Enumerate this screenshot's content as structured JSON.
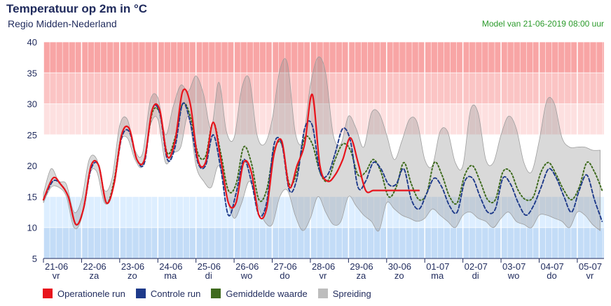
{
  "header": {
    "title": "Temperatuur op 2m in °C",
    "subtitle": "Regio Midden-Nederland",
    "model": "Model van 21-06-2019 08:00 uur"
  },
  "legend": [
    {
      "label": "Operationele run",
      "color": "#e8141c"
    },
    {
      "label": "Controle run",
      "color": "#1e3a8a"
    },
    {
      "label": "Gemiddelde waarde",
      "color": "#3f6b1e"
    },
    {
      "label": "Spreiding",
      "color": "#bdbdbd"
    }
  ],
  "chart_data": {
    "type": "line",
    "x_unit": "days since 21-06-2019 00:00",
    "ylim": [
      5,
      40
    ],
    "yticks": [
      5,
      10,
      15,
      20,
      25,
      30,
      35,
      40
    ],
    "bands": [
      {
        "from": 35,
        "to": 40,
        "color": "#f8a5a5"
      },
      {
        "from": 30,
        "to": 35,
        "color": "#fbc4c4"
      },
      {
        "from": 25,
        "to": 30,
        "color": "#fde0e0"
      },
      {
        "from": 15,
        "to": 25,
        "color": "#ffffff"
      },
      {
        "from": 10,
        "to": 15,
        "color": "#ddeeff"
      },
      {
        "from": 5,
        "to": 10,
        "color": "#c3dcf7"
      }
    ],
    "day_labels": [
      {
        "date": "21-06",
        "day": "vr"
      },
      {
        "date": "22-06",
        "day": "za"
      },
      {
        "date": "23-06",
        "day": "zo"
      },
      {
        "date": "24-06",
        "day": "ma"
      },
      {
        "date": "25-06",
        "day": "di"
      },
      {
        "date": "26-06",
        "day": "wo"
      },
      {
        "date": "27-06",
        "day": "do"
      },
      {
        "date": "28-06",
        "day": "vr"
      },
      {
        "date": "29-06",
        "day": "za"
      },
      {
        "date": "30-06",
        "day": "zo"
      },
      {
        "date": "01-07",
        "day": "ma"
      },
      {
        "date": "02-07",
        "day": "di"
      },
      {
        "date": "03-07",
        "day": "wo"
      },
      {
        "date": "04-07",
        "day": "do"
      },
      {
        "date": "05-07",
        "day": "vr"
      }
    ],
    "series": [
      {
        "name": "Spreiding",
        "kind": "range",
        "x": [
          0.0,
          0.2,
          0.4,
          0.6,
          0.8,
          1.0,
          1.2,
          1.4,
          1.6,
          1.8,
          2.0,
          2.2,
          2.4,
          2.6,
          2.8,
          3.0,
          3.2,
          3.4,
          3.6,
          3.8,
          4.0,
          4.2,
          4.4,
          4.6,
          4.8,
          5.0,
          5.2,
          5.4,
          5.6,
          5.8,
          6.0,
          6.2,
          6.4,
          6.6,
          6.8,
          7.0,
          7.2,
          7.4,
          7.6,
          7.8,
          8.0,
          8.2,
          8.4,
          8.6,
          8.8,
          9.0,
          9.2,
          9.4,
          9.6,
          9.8,
          10.0,
          10.2,
          10.4,
          10.6,
          10.8,
          11.0,
          11.2,
          11.4,
          11.6,
          11.8,
          12.0,
          12.2,
          12.4,
          12.6,
          12.8,
          13.0,
          13.2,
          13.4,
          13.6,
          13.8,
          14.0,
          14.2,
          14.4,
          14.6
        ],
        "low": [
          14.0,
          16.5,
          16.5,
          15.0,
          10.0,
          11.5,
          18.5,
          19.0,
          14.0,
          15.5,
          23.5,
          24.5,
          21.0,
          20.0,
          26.5,
          27.5,
          20.5,
          22.0,
          23.0,
          28.0,
          20.0,
          17.5,
          16.5,
          20.0,
          15.0,
          11.5,
          14.0,
          17.5,
          14.0,
          11.0,
          10.5,
          15.0,
          16.0,
          12.0,
          9.5,
          11.5,
          15.0,
          12.5,
          10.5,
          11.0,
          15.0,
          13.5,
          12.0,
          11.0,
          9.5,
          14.0,
          13.0,
          12.0,
          11.5,
          11.0,
          11.5,
          13.0,
          12.0,
          11.0,
          10.0,
          12.0,
          12.5,
          11.5,
          11.0,
          10.0,
          11.5,
          12.5,
          11.0,
          10.5,
          10.0,
          12.0,
          12.0,
          11.5,
          11.0,
          10.0,
          12.5,
          12.0,
          10.5,
          9.5
        ],
        "high": [
          15.5,
          19.5,
          17.5,
          17.0,
          12.5,
          14.5,
          21.0,
          21.0,
          16.0,
          18.0,
          26.5,
          27.5,
          22.5,
          22.0,
          30.5,
          31.0,
          25.0,
          29.5,
          33.0,
          32.0,
          34.5,
          31.5,
          26.0,
          33.5,
          25.5,
          24.5,
          32.5,
          34.0,
          25.0,
          23.5,
          27.5,
          35.5,
          36.5,
          25.5,
          24.0,
          33.0,
          37.5,
          35.0,
          25.0,
          23.5,
          28.0,
          26.0,
          23.0,
          28.5,
          28.5,
          25.0,
          21.0,
          24.0,
          27.5,
          27.0,
          21.0,
          20.0,
          25.5,
          25.5,
          20.5,
          20.0,
          29.0,
          28.5,
          21.0,
          20.5,
          25.0,
          28.0,
          26.0,
          20.5,
          19.0,
          24.0,
          30.5,
          30.0,
          24.5,
          23.0,
          23.0,
          23.0,
          22.5,
          22.5
        ]
      },
      {
        "name": "Operationele run",
        "x": [
          0.0,
          0.25,
          0.45,
          0.65,
          0.85,
          1.05,
          1.25,
          1.45,
          1.65,
          1.85,
          2.05,
          2.25,
          2.45,
          2.65,
          2.85,
          3.05,
          3.25,
          3.45,
          3.65,
          3.85,
          4.05,
          4.25,
          4.45,
          4.65,
          4.85,
          5.05,
          5.25,
          5.45,
          5.65,
          5.85,
          6.05,
          6.25,
          6.45,
          6.65,
          6.85,
          7.05,
          7.25,
          7.45,
          7.65,
          7.85,
          8.05,
          8.25,
          8.45,
          8.65,
          8.85,
          9.05,
          9.25,
          9.45,
          9.65,
          9.85
        ],
        "values": [
          14.5,
          18.0,
          17.0,
          15.0,
          10.5,
          13.0,
          20.0,
          20.0,
          14.0,
          17.0,
          25.0,
          26.0,
          21.0,
          21.0,
          29.0,
          29.0,
          21.5,
          24.0,
          32.0,
          30.0,
          21.0,
          20.5,
          27.0,
          21.0,
          14.0,
          14.0,
          20.5,
          19.0,
          12.0,
          13.0,
          22.0,
          24.0,
          16.5,
          20.0,
          23.5,
          31.5,
          20.0,
          17.5,
          18.5,
          21.0,
          24.5,
          20.5,
          16.0,
          16.0,
          16.0,
          16.0,
          16.0,
          16.0,
          16.0,
          16.0
        ]
      },
      {
        "name": "Controle run",
        "x": [
          0.0,
          0.25,
          0.45,
          0.65,
          0.85,
          1.05,
          1.25,
          1.45,
          1.65,
          1.85,
          2.05,
          2.25,
          2.45,
          2.65,
          2.85,
          3.05,
          3.25,
          3.45,
          3.65,
          3.85,
          4.05,
          4.25,
          4.45,
          4.65,
          4.85,
          5.05,
          5.25,
          5.45,
          5.65,
          5.85,
          6.05,
          6.25,
          6.45,
          6.65,
          6.85,
          7.05,
          7.25,
          7.45,
          7.65,
          7.85,
          8.05,
          8.25,
          8.45,
          8.65,
          8.85,
          9.05,
          9.25,
          9.45,
          9.65,
          9.85,
          10.05,
          10.25,
          10.45,
          10.65,
          10.85,
          11.05,
          11.25,
          11.45,
          11.65,
          11.85,
          12.05,
          12.25,
          12.45,
          12.65,
          12.85,
          13.05,
          13.25,
          13.45,
          13.65,
          13.85,
          14.05,
          14.25,
          14.45,
          14.65
        ],
        "values": [
          14.5,
          17.5,
          17.0,
          15.0,
          10.5,
          13.0,
          19.5,
          20.0,
          14.0,
          17.0,
          24.5,
          25.5,
          21.0,
          20.5,
          29.0,
          28.5,
          21.0,
          23.0,
          30.0,
          27.0,
          20.5,
          20.0,
          25.0,
          19.5,
          12.0,
          15.5,
          21.0,
          17.5,
          12.0,
          14.0,
          23.5,
          23.5,
          16.0,
          18.0,
          26.0,
          26.5,
          19.0,
          18.5,
          22.0,
          26.0,
          24.0,
          16.5,
          17.5,
          20.5,
          19.5,
          17.0,
          17.0,
          19.5,
          14.5,
          13.0,
          15.5,
          18.0,
          16.5,
          13.5,
          12.5,
          17.5,
          18.0,
          15.0,
          12.5,
          13.0,
          18.0,
          17.0,
          14.0,
          12.0,
          13.5,
          16.5,
          19.5,
          18.0,
          15.0,
          12.5,
          16.0,
          18.5,
          14.5,
          11.0
        ]
      },
      {
        "name": "Gemiddelde waarde",
        "x": [
          0.0,
          0.25,
          0.45,
          0.65,
          0.85,
          1.05,
          1.25,
          1.45,
          1.65,
          1.85,
          2.05,
          2.25,
          2.45,
          2.65,
          2.85,
          3.05,
          3.25,
          3.45,
          3.65,
          3.85,
          4.05,
          4.25,
          4.45,
          4.65,
          4.85,
          5.05,
          5.25,
          5.45,
          5.65,
          5.85,
          6.05,
          6.25,
          6.45,
          6.65,
          6.85,
          7.05,
          7.25,
          7.45,
          7.65,
          7.85,
          8.05,
          8.25,
          8.45,
          8.65,
          8.85,
          9.05,
          9.25,
          9.45,
          9.65,
          9.85,
          10.05,
          10.25,
          10.45,
          10.65,
          10.85,
          11.05,
          11.25,
          11.45,
          11.65,
          11.85,
          12.05,
          12.25,
          12.45,
          12.65,
          12.85,
          13.05,
          13.25,
          13.45,
          13.65,
          13.85,
          14.05,
          14.25,
          14.45,
          14.65
        ],
        "values": [
          14.5,
          18.0,
          17.0,
          15.0,
          10.5,
          13.0,
          20.0,
          20.0,
          14.0,
          17.5,
          25.0,
          26.0,
          21.0,
          21.0,
          28.5,
          28.5,
          22.0,
          24.5,
          30.0,
          28.0,
          22.0,
          21.5,
          27.0,
          22.0,
          16.0,
          17.0,
          23.0,
          20.5,
          14.5,
          16.0,
          22.5,
          23.5,
          17.0,
          19.0,
          24.5,
          23.5,
          19.0,
          17.5,
          21.0,
          23.5,
          22.5,
          18.5,
          19.0,
          21.0,
          19.0,
          15.0,
          16.5,
          20.5,
          17.0,
          14.5,
          15.5,
          20.5,
          18.5,
          15.0,
          14.0,
          18.5,
          20.0,
          17.5,
          14.5,
          14.5,
          19.0,
          19.0,
          16.0,
          14.5,
          15.0,
          19.0,
          20.5,
          18.5,
          16.0,
          14.5,
          16.5,
          20.5,
          19.0,
          16.0
        ]
      }
    ]
  }
}
